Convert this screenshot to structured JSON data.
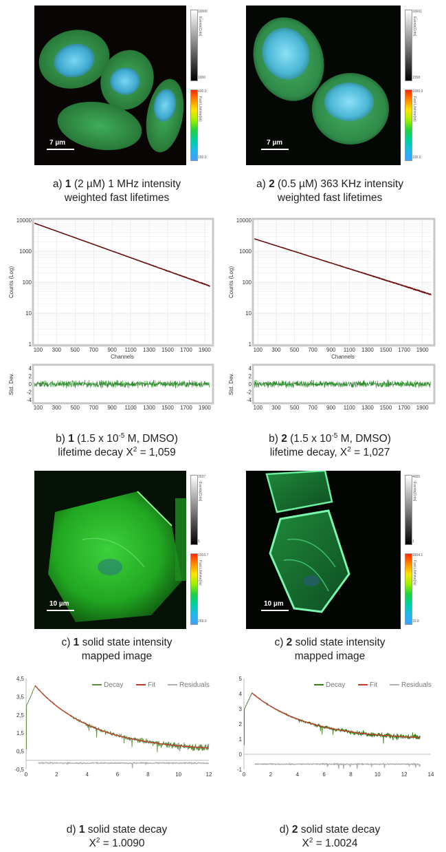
{
  "figure": {
    "images_top": [
      {
        "scale_label": "7 µm",
        "gray_max": "10000",
        "gray_min": "1000",
        "gray_title": "Events[Cnts]",
        "color_max": "400.0",
        "color_min": "150.0",
        "color_title": "Fast Lifetime[ns]"
      },
      {
        "scale_label": "7 µm",
        "gray_max": "16601",
        "gray_min": "1558",
        "gray_title": "Events[Cnts]",
        "color_max": "1000.0",
        "color_min": "100.0",
        "color_title": "Fast Lifetime[ns]"
      }
    ],
    "images_mid": [
      {
        "scale_label": "10 µm",
        "gray_max": "3537",
        "gray_min": "5",
        "gray_title": "Events[Cnts]",
        "color_max": "1003.7",
        "color_min": "269.0",
        "color_title": "Fast Lifetime[ns]"
      },
      {
        "scale_label": "10 µm",
        "gray_max": "4655",
        "gray_min": "1",
        "gray_title": "Events[Cnts]",
        "color_max": "1804.1",
        "color_min": "19.8",
        "color_title": "Fast Lifetime[ns]"
      }
    ],
    "captions": {
      "a1": {
        "prefix": "a) ",
        "num": "1",
        "rest": " (2 µM) 1 MHz intensity",
        "line2": "weighted fast lifetimes"
      },
      "a2": {
        "prefix": "a) ",
        "num": "2",
        "rest": " (0.5 µM) 363 KHz intensity",
        "line2": "weighted fast lifetimes"
      },
      "b1": {
        "prefix": "b) ",
        "num": "1",
        "rest": " (1.5 x 10",
        "sup": "-5",
        "rest2": " M, DMSO)",
        "line2a": "lifetime decay X",
        "line2sup": "2",
        "line2b": " = 1,059"
      },
      "b2": {
        "prefix": "b) ",
        "num": "2",
        "rest": " (1.5 x 10",
        "sup": "-5",
        "rest2": " M, DMSO)",
        "line2a": "lifetime decay, X",
        "line2sup": "2",
        "line2b": " = 1,027"
      },
      "c1": {
        "prefix": "c) ",
        "num": "1",
        "rest": "  solid state intensity",
        "line2": "mapped image"
      },
      "c2": {
        "prefix": "c) ",
        "num": "2",
        "rest": " solid state intensity",
        "line2": "mapped image"
      },
      "d1": {
        "prefix": "d) ",
        "num": "1",
        "rest": " solid state decay",
        "line2a": "X",
        "line2sup": "2",
        "line2b": " = 1.0090"
      },
      "d2": {
        "prefix": "d) ",
        "num": "2",
        "rest": " solid state decay",
        "line2a": "X",
        "line2sup": "2",
        "line2b": " = 1.0024"
      }
    }
  },
  "chart_data": [
    {
      "type": "scatter",
      "id": "b1-decay",
      "ylabel": "Counts (Log)",
      "xlabel": "Channels",
      "yscale": "log",
      "ylim": [
        1,
        10000
      ],
      "xlim": [
        60,
        1960
      ],
      "yticks": [
        "10000",
        "1000",
        "100",
        "10",
        "1"
      ],
      "xticks": [
        "100",
        "300",
        "500",
        "700",
        "900",
        "1100",
        "1300",
        "1500",
        "1700",
        "1900"
      ],
      "series": [
        {
          "values_start": 8000,
          "values_end": 75,
          "x_start": 60,
          "x_end": 1950
        }
      ],
      "residual_ylabel": "Std. Dev.",
      "residual_yticks": [
        "4",
        "2",
        "0",
        "-2",
        "-4"
      ],
      "grid": true
    },
    {
      "type": "scatter",
      "id": "b2-decay",
      "ylabel": "Counts (Log)",
      "xlabel": "Channels",
      "yscale": "log",
      "ylim": [
        1,
        10000
      ],
      "xlim": [
        60,
        2000
      ],
      "yticks": [
        "10000",
        "1000",
        "100",
        "10",
        "1"
      ],
      "xticks": [
        "100",
        "300",
        "500",
        "700",
        "900",
        "1100",
        "1300",
        "1500",
        "1700",
        "1900"
      ],
      "series": [
        {
          "values_start": 2500,
          "values_end": 40,
          "x_start": 60,
          "x_end": 1990
        }
      ],
      "residual_ylabel": "Std. Dev.",
      "residual_yticks": [
        "4",
        "2",
        "0",
        "-2",
        "-4"
      ],
      "grid": true
    },
    {
      "type": "line",
      "id": "d1-solid-decay",
      "xlim": [
        0,
        12
      ],
      "ylim": [
        -0.5,
        4.5
      ],
      "xticks": [
        "0",
        "2",
        "4",
        "6",
        "8",
        "10",
        "12"
      ],
      "yticks": [
        "4,5",
        "3,5",
        "2,5",
        "1,5",
        "0,5",
        "-0,5"
      ],
      "legend": [
        "Decay",
        "Fit",
        "Residuals"
      ],
      "legend_position": "top-right",
      "colors": {
        "decay": "#5a8a3a",
        "fit": "#c0392b",
        "residuals": "#b0b0b0"
      },
      "peak": {
        "x": 0.6,
        "y": 4.1
      },
      "end": {
        "x": 12,
        "y": 0.55
      },
      "grid": false
    },
    {
      "type": "line",
      "id": "d2-solid-decay",
      "xlim": [
        0,
        14
      ],
      "ylim": [
        -1,
        5
      ],
      "xticks": [
        "0",
        "2",
        "4",
        "6",
        "8",
        "10",
        "12",
        "14"
      ],
      "yticks": [
        "5",
        "4",
        "3",
        "2",
        "1",
        "0",
        "-1"
      ],
      "legend": [
        "Decay",
        "Fit",
        "Residuals"
      ],
      "legend_position": "top-right",
      "colors": {
        "decay": "#3a7a1a",
        "fit": "#c0392b",
        "residuals": "#b0b0b0"
      },
      "peak": {
        "x": 0.6,
        "y": 4.05
      },
      "end": {
        "x": 13.2,
        "y": 1.0
      },
      "grid": false
    }
  ]
}
